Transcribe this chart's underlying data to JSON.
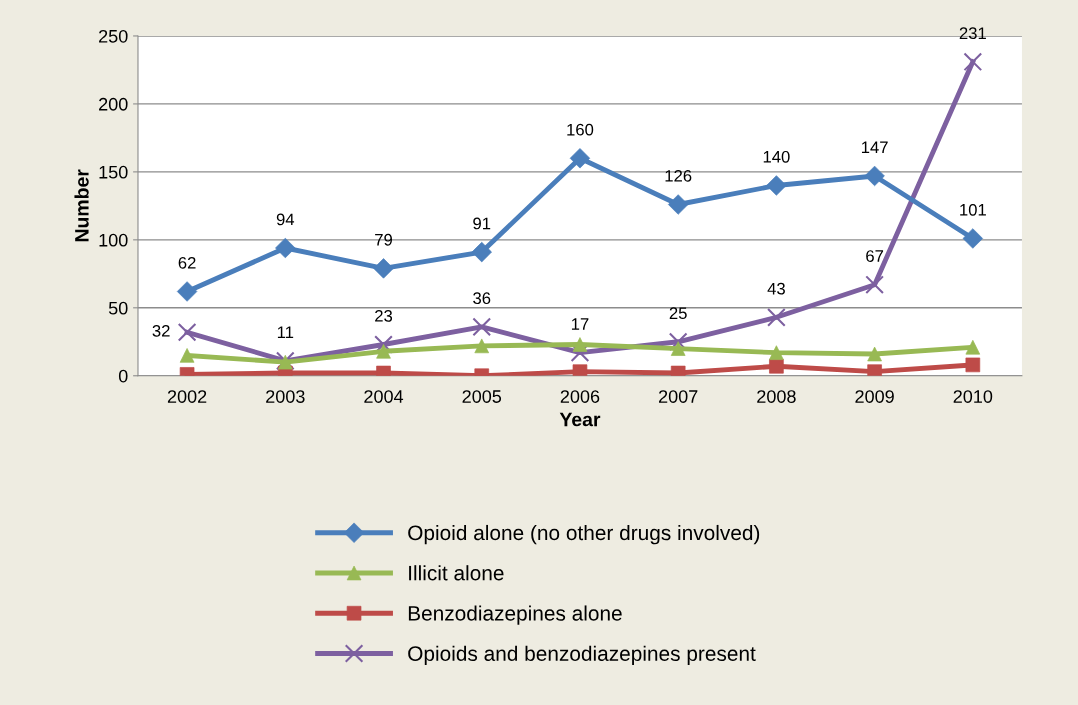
{
  "chart_data": {
    "type": "line",
    "xlabel": "Year",
    "ylabel": "Number",
    "categories": [
      "2002",
      "2003",
      "2004",
      "2005",
      "2006",
      "2007",
      "2008",
      "2009",
      "2010"
    ],
    "series": [
      {
        "name": "Opioid alone (no other drugs involved)",
        "color": "#4a7ebb",
        "marker": "diamond",
        "values": [
          62,
          94,
          79,
          91,
          160,
          126,
          140,
          147,
          101
        ],
        "value_labels": [
          "62",
          "94",
          "79",
          "91",
          "160",
          "126",
          "140",
          "147",
          "101"
        ]
      },
      {
        "name": "Illicit alone",
        "color": "#98b954",
        "marker": "triangle",
        "values": [
          15,
          10,
          18,
          22,
          23,
          20,
          17,
          16,
          21
        ]
      },
      {
        "name": "Benzodiazepines alone",
        "color": "#be4b48",
        "marker": "square",
        "values": [
          1,
          2,
          2,
          0,
          3,
          2,
          7,
          3,
          8
        ]
      },
      {
        "name": "Opioids and benzodiazepines present",
        "color": "#7d60a0",
        "marker": "cross",
        "values": [
          32,
          11,
          23,
          36,
          17,
          25,
          43,
          67,
          231
        ],
        "value_labels": [
          "32",
          "11",
          "23",
          "36",
          "17",
          "25",
          "43",
          "67",
          "231"
        ]
      }
    ],
    "ylim": [
      0,
      250
    ],
    "yticks": [
      0,
      50,
      100,
      150,
      200,
      250
    ],
    "grid": "y",
    "legend": "bottom"
  }
}
